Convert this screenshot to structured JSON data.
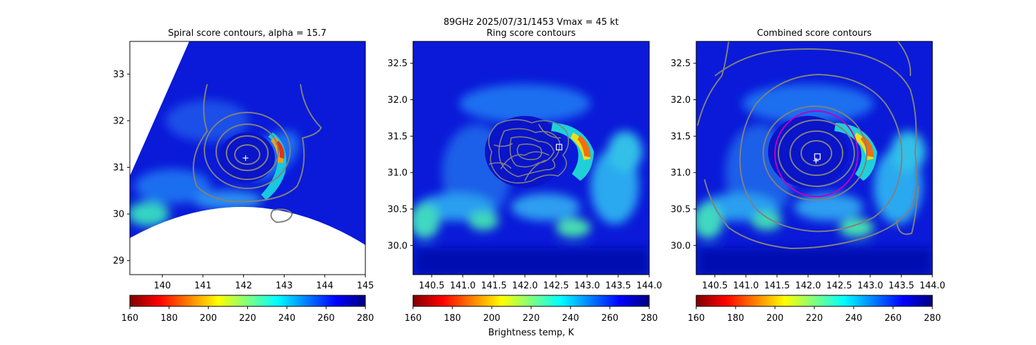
{
  "suptitle": "89GHz  2025/07/31/1453    Vmax = 45 kt",
  "colorbar_label": "Brightness temp, K",
  "colorscale": {
    "name": "jet_r",
    "min": 160,
    "max": 280,
    "ticks": [
      "160",
      "180",
      "200",
      "220",
      "240",
      "260",
      "280"
    ]
  },
  "chart_data": [
    {
      "type": "heatmap",
      "title": "Spiral score contours, alpha = 15.7",
      "xlim": [
        139.2,
        145.0
      ],
      "ylim": [
        28.7,
        33.7
      ],
      "xticks": [
        "140",
        "141",
        "142",
        "143",
        "144",
        "145"
      ],
      "yticks": [
        "29",
        "30",
        "31",
        "32",
        "33"
      ],
      "center": {
        "x": 142.05,
        "y": 31.2,
        "marker": "plus"
      },
      "contour_color": "#808080",
      "swath_mask": true,
      "eye_ring": {
        "x": 142.05,
        "y": 31.2,
        "r": 0.7
      },
      "warm_band": {
        "x": 142.9,
        "y": 31.3
      }
    },
    {
      "type": "heatmap",
      "title": "Ring score contours",
      "xlim": [
        140.2,
        144.0
      ],
      "ylim": [
        29.6,
        32.8
      ],
      "xticks": [
        "140.5",
        "141.0",
        "141.5",
        "142.0",
        "142.5",
        "143.0",
        "143.5",
        "144.0"
      ],
      "yticks": [
        "30.0",
        "30.5",
        "31.0",
        "31.5",
        "32.0",
        "32.5"
      ],
      "center": {
        "x": 142.55,
        "y": 31.35,
        "marker": "square"
      },
      "contour_color": "#808080",
      "eye_ring": {
        "x": 142.05,
        "y": 31.2,
        "r": 0.7
      },
      "warm_band": {
        "x": 142.95,
        "y": 31.35
      }
    },
    {
      "type": "heatmap",
      "title": "Combined score contours",
      "xlim": [
        140.2,
        144.0
      ],
      "ylim": [
        29.6,
        32.8
      ],
      "xticks": [
        "140.5",
        "141.0",
        "141.5",
        "142.0",
        "142.5",
        "143.0",
        "143.5",
        "144.0"
      ],
      "yticks": [
        "30.0",
        "30.5",
        "31.0",
        "31.5",
        "32.0",
        "32.5"
      ],
      "center": {
        "x": 142.15,
        "y": 31.22,
        "marker": "square-plus"
      },
      "contour_color": "#808080",
      "fit_circle": {
        "x": 142.15,
        "y": 31.25,
        "r": 0.6,
        "color": "#c000c0"
      },
      "eye_ring": {
        "x": 142.05,
        "y": 31.2,
        "r": 0.7
      },
      "warm_band": {
        "x": 142.95,
        "y": 31.35
      }
    }
  ]
}
